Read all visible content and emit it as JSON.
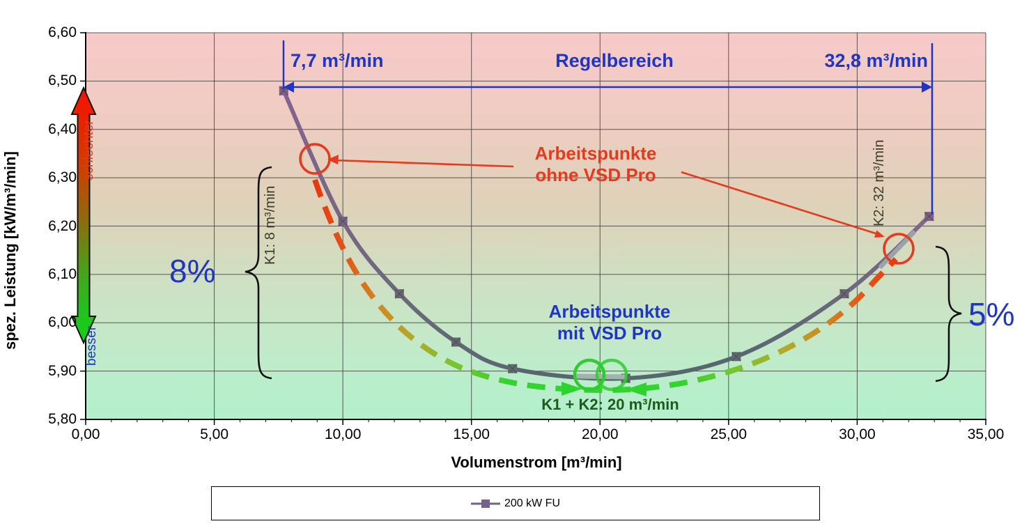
{
  "chart_data": {
    "type": "line",
    "title": "",
    "xlabel": "Volumenstrom [m³/min]",
    "ylabel": "spez. Leistung [kW/m³/min]",
    "xlim": [
      0,
      35
    ],
    "ylim": [
      5.8,
      6.6
    ],
    "grid": true,
    "xticks": {
      "values": [
        0,
        5,
        10,
        15,
        20,
        25,
        30,
        35
      ],
      "labels": [
        "0,00",
        "5,00",
        "10,00",
        "15,00",
        "20,00",
        "25,00",
        "30,00",
        "35,00"
      ],
      "minor_step": 1
    },
    "yticks": {
      "values": [
        6.6,
        6.5,
        6.4,
        6.3,
        6.2,
        6.1,
        6.0,
        5.9,
        5.8
      ],
      "labels": [
        "6,60",
        "6,50",
        "6,40",
        "6,30",
        "6,20",
        "6,10",
        "6,00",
        "5,90",
        "5,80"
      ]
    },
    "series": [
      {
        "name": "200 kW FU",
        "points": [
          [
            7.7,
            6.48
          ],
          [
            10,
            6.21
          ],
          [
            12.2,
            6.06
          ],
          [
            14.4,
            5.96
          ],
          [
            16.6,
            5.905
          ],
          [
            21,
            5.885
          ],
          [
            25.3,
            5.93
          ],
          [
            29.5,
            6.06
          ],
          [
            32.8,
            6.22
          ]
        ],
        "marker_colors": [
          "#7d5f88",
          "#74627f",
          "#6b6676",
          "#63686e",
          "#60686d",
          "#60686d",
          "#62696e",
          "#6b6677",
          "#7c6086"
        ]
      }
    ],
    "legend": {
      "position": "bottom",
      "entries": [
        {
          "label": "200 kW FU",
          "color": "#75618a"
        }
      ]
    }
  },
  "annotations": {
    "regelbereich": {
      "min": "7,7 m³/min",
      "label": "Regelbereich",
      "max": "32,8 m³/min",
      "color": "#1f35c9"
    },
    "ohne": {
      "line1": "Arbeitspunkte",
      "bold": "ohne",
      "rest": " VSD Pro",
      "color": "#e8391d"
    },
    "mit": {
      "line1": "Arbeitspunkte",
      "bold": "mit",
      "rest": " VSD Pro",
      "color": "#1f35c9"
    },
    "k1": "K1: 8 m³/min",
    "k2": "K2: 32 m³/min",
    "k1k2": "K1 + K2: 20 m³/min",
    "pct_left": "8%",
    "pct_right": "5%",
    "worse": "schlechter",
    "better": "besser",
    "colors": {
      "good_green": "#2ed42e",
      "bad_red": "#e8391d",
      "accent_blue": "#1f35c9"
    }
  }
}
